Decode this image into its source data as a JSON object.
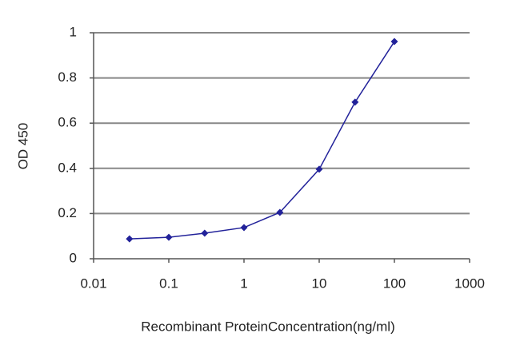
{
  "chart_data": {
    "type": "line",
    "x_label": "Recombinant ProteinConcentration(ng/ml)",
    "y_label": "OD 450",
    "x": [
      0.03,
      0.1,
      0.3,
      1,
      3,
      10,
      30,
      100
    ],
    "series": [
      {
        "color": "#22229a",
        "values": [
          0.088,
          0.095,
          0.113,
          0.138,
          0.205,
          0.396,
          0.693,
          0.961
        ]
      }
    ],
    "xlim": [
      0.01,
      1000
    ],
    "xticks": [
      0.01,
      0.1,
      1,
      10,
      100,
      1000
    ],
    "ylim": [
      0,
      1
    ],
    "yticks": [
      0,
      0.2,
      0.4,
      0.6,
      0.8,
      1
    ],
    "x_log": true,
    "grid": true
  }
}
